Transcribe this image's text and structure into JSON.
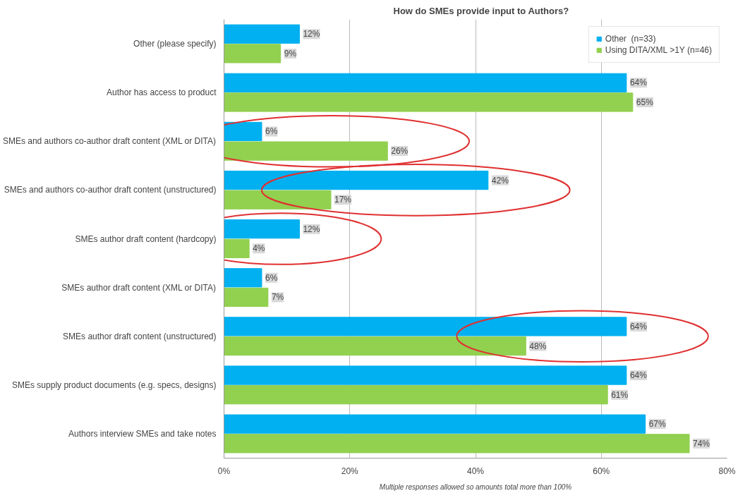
{
  "chart_data": {
    "type": "bar",
    "orientation": "horizontal",
    "title": "How do SMEs provide input to Authors?",
    "categories": [
      "Other (please specify)",
      "Author has access to product",
      "SMEs and authors co-author draft content (XML or DITA)",
      "SMEs and authors co-author draft content (unstructured)",
      "SMEs author draft content (hardcopy)",
      "SMEs author draft content (XML or DITA)",
      "SMEs author draft content (unstructured)",
      "SMEs supply product documents (e.g. specs, designs)",
      "Authors interview SMEs and take notes"
    ],
    "series": [
      {
        "name": "Other  (n=33)",
        "color": "#00b0f0",
        "values": [
          12,
          64,
          6,
          42,
          12,
          6,
          64,
          64,
          67
        ],
        "value_labels": [
          "12%",
          "64%",
          "6%",
          "42%",
          "12%",
          "6%",
          "64%",
          "64%",
          "67%"
        ]
      },
      {
        "name": "Using DITA/XML >1Y (n=46)",
        "color": "#92d050",
        "values": [
          9,
          65,
          26,
          17,
          4,
          7,
          48,
          61,
          74
        ],
        "value_labels": [
          "9%",
          "65%",
          "26%",
          "17%",
          "4%",
          "7%",
          "48%",
          "61%",
          "74%"
        ]
      }
    ],
    "xlim": [
      0,
      80
    ],
    "xticks": [
      {
        "value": 0,
        "label": "0%"
      },
      {
        "value": 20,
        "label": "20%"
      },
      {
        "value": 40,
        "label": "40%"
      },
      {
        "value": 60,
        "label": "60%"
      },
      {
        "value": 80,
        "label": "80%"
      }
    ],
    "grid": "x",
    "legend": "top right",
    "annotations": [
      "Multiple responses allowed so amounts total more than 100%"
    ]
  }
}
